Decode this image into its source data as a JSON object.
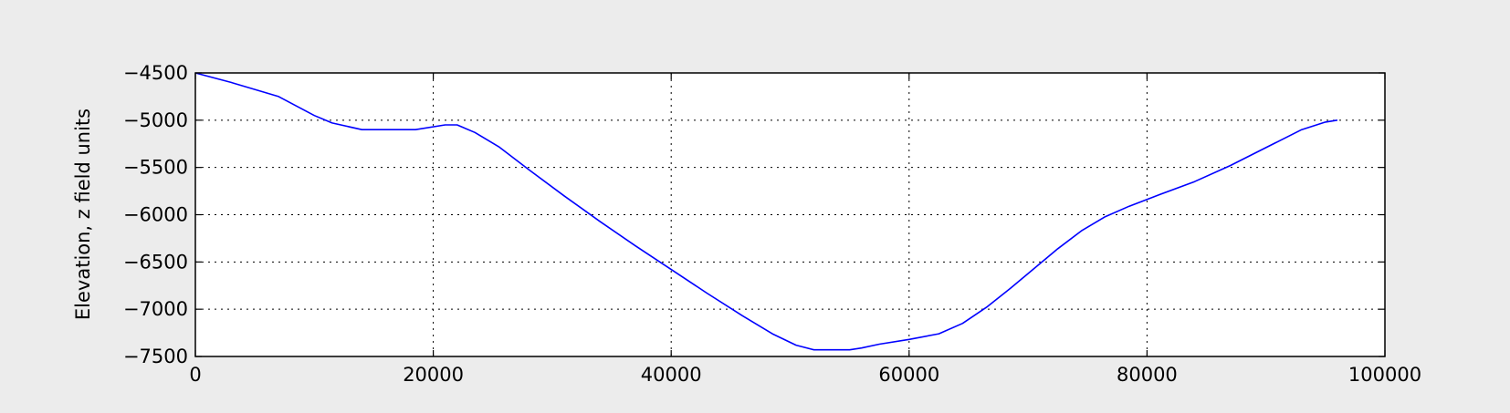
{
  "chart_data": {
    "type": "line",
    "title": "",
    "xlabel": "",
    "ylabel": "Elevation, z field units",
    "xlim": [
      0,
      100000
    ],
    "ylim": [
      -7500,
      -4500
    ],
    "xticks": [
      0,
      20000,
      40000,
      60000,
      80000,
      100000
    ],
    "xtick_labels": [
      "0",
      "20000",
      "40000",
      "60000",
      "80000",
      "100000"
    ],
    "yticks": [
      -4500,
      -5000,
      -5500,
      -6000,
      -6500,
      -7000,
      -7500
    ],
    "ytick_labels": [
      "−4500",
      "−5000",
      "−5500",
      "−6000",
      "−6500",
      "−7000",
      "−7500"
    ],
    "grid": true,
    "line_color": "#0000ff",
    "series": [
      {
        "x": [
          0,
          3000,
          7000,
          10000,
          11500,
          14000,
          18500,
          21000,
          22000,
          23500,
          25500,
          28000,
          31000,
          34000,
          37000,
          40000,
          43000,
          46000,
          48500,
          50500,
          52000,
          55000,
          56000,
          57500,
          60000,
          62500,
          64500,
          66500,
          68500,
          70500,
          72500,
          74500,
          76500,
          78500,
          81000,
          84000,
          87000,
          90000,
          93000,
          95000,
          96000
        ],
        "y": [
          -4500,
          -4600,
          -4750,
          -4950,
          -5030,
          -5100,
          -5100,
          -5050,
          -5050,
          -5130,
          -5280,
          -5520,
          -5800,
          -6070,
          -6330,
          -6580,
          -6830,
          -7070,
          -7260,
          -7380,
          -7430,
          -7430,
          -7410,
          -7370,
          -7320,
          -7260,
          -7150,
          -6980,
          -6780,
          -6570,
          -6360,
          -6170,
          -6020,
          -5910,
          -5790,
          -5650,
          -5480,
          -5290,
          -5100,
          -5020,
          -5000
        ]
      }
    ]
  }
}
